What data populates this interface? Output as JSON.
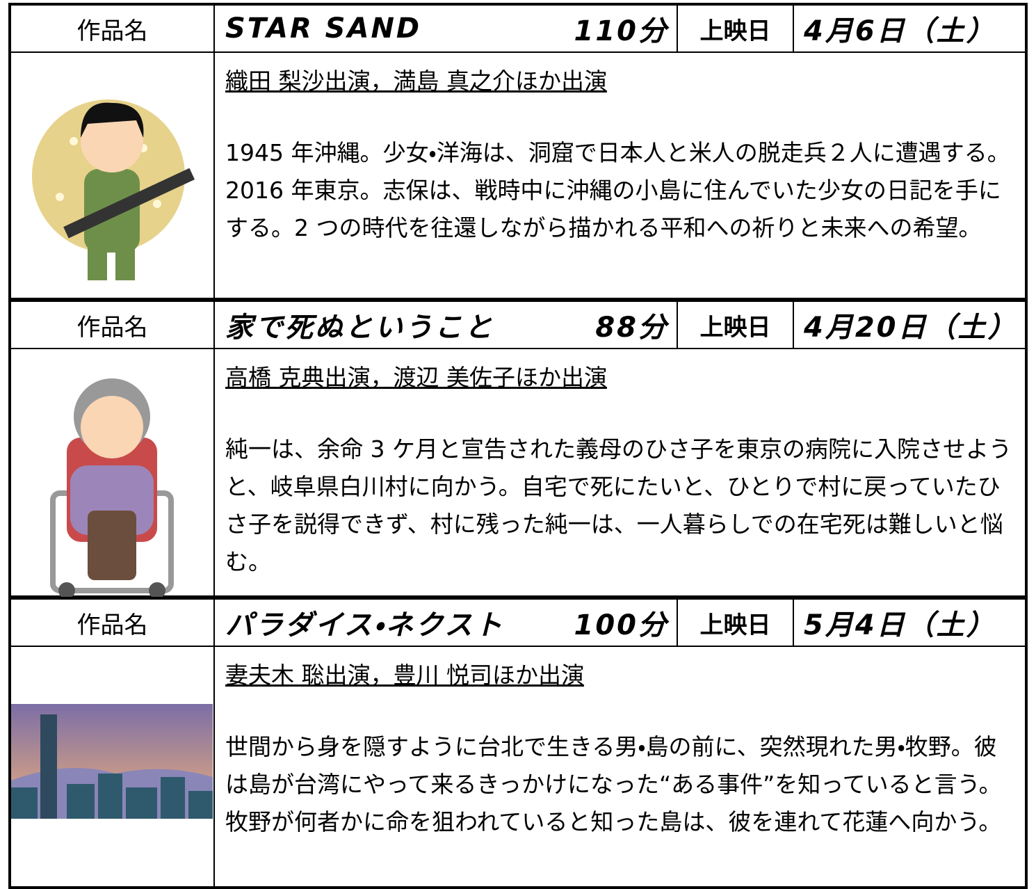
{
  "movies": [
    {
      "label": "作品名",
      "title": "STAR SAND",
      "duration": "110分",
      "date_label": "上映日",
      "date": "4月6日（土）",
      "cast": "織田 梨沙出演，満島 真之介ほか出演",
      "synopsis": "1945 年沖縄。少女・洋海は、洞窟で日本人と米人の脱走兵２人に遭遇する。2016 年東京。志保は、戦時中に沖縄の小島に住んでいた少女の日記を手にする。2 つの時代を往還しながら描かれる平和への祈りと未来への希望。"
    },
    {
      "label": "作品名",
      "title": "家で死ぬということ",
      "duration": "88分",
      "date_label": "上映日",
      "date": "4月20日（土）",
      "cast": "高橋 克典出演，渡辺 美佐子ほか出演",
      "synopsis": "純一は、余命 3 ケ月と宣告された義母のひさ子を東京の病院に入院させようと、岐阜県白川村に向かう。自宅で死にたいと、ひとりで村に戻っていたひさ子を説得できず、村に残った純一は、一人暮らしでの在宅死は難しいと悩む。"
    },
    {
      "label": "作品名",
      "title": "パラダイス・ネクスト",
      "duration": "100分",
      "date_label": "上映日",
      "date": "5月4日（土）",
      "cast": "妻夫木 聡出演，豊川 悦司ほか出演",
      "synopsis": "世間から身を隠すように台北で生きる男・島の前に、突然現れた男・牧野。彼は島が台湾にやって来るきっかけになった“ある事件”を知っていると言う。牧野が何者かに命を狙われていると知った島は、彼を連れて花蓮へ向かう。"
    }
  ]
}
